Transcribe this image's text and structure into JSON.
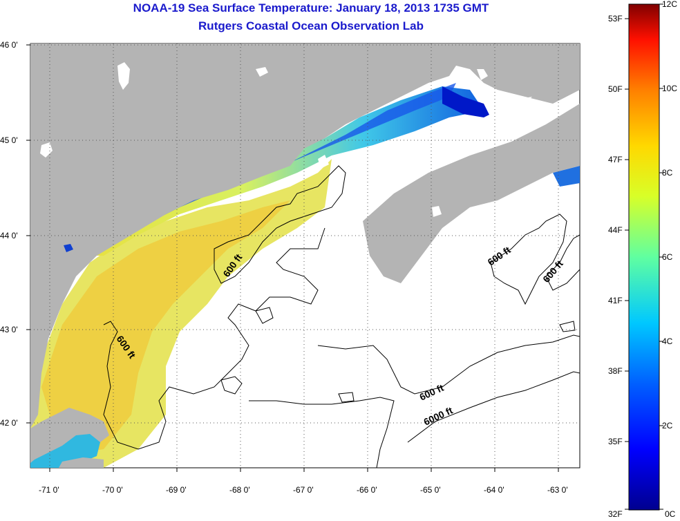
{
  "title_line1": "NOAA-19 Sea Surface Temperature:  January 18, 2013 1735 GMT",
  "title_line2": "Rutgers Coastal Ocean Observation Lab",
  "lat_labels": [
    "46 0'",
    "45 0'",
    "44 0'",
    "43 0'",
    "42 0'"
  ],
  "lon_labels": [
    "-71 0'",
    "-70 0'",
    "-69 0'",
    "-68 0'",
    "-67 0'",
    "-66 0'",
    "-65 0'",
    "-64 0'",
    "-63 0'"
  ],
  "contour_labels": [
    "600 ft",
    "600 ft",
    "600 ft",
    "600 ft",
    "600 ft",
    "6000 ft"
  ],
  "colorbar": {
    "fahrenheit": [
      "53F",
      "50F",
      "47F",
      "44F",
      "41F",
      "38F",
      "35F",
      "32F"
    ],
    "celsius": [
      "12C",
      "10C",
      "8C",
      "6C",
      "4C",
      "2C",
      "0C"
    ]
  },
  "colors": {
    "land": "#b4b4b4",
    "title": "#1a1acc",
    "ocean_missing": "#ffffff"
  }
}
